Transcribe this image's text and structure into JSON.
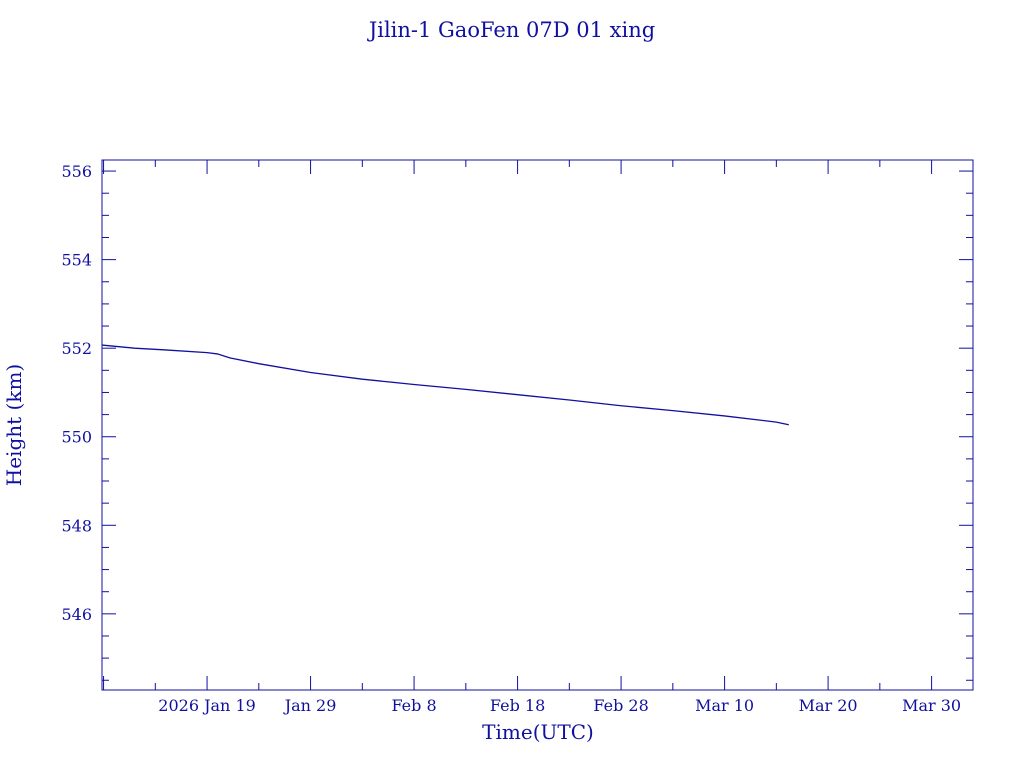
{
  "chart_data": {
    "type": "line",
    "title": "Jilin-1 GaoFen 07D 01 xing",
    "xlabel": "Time(UTC)",
    "ylabel": "Height (km)",
    "x_unit": "days since 2026 Jan 19",
    "xlim": [
      -10.15,
      74.0
    ],
    "ylim": [
      544.28,
      556.25
    ],
    "x_ticks": [
      {
        "day": 0,
        "label": "2026 Jan 19"
      },
      {
        "day": 10,
        "label": "Jan 29"
      },
      {
        "day": 20,
        "label": "Feb  8"
      },
      {
        "day": 30,
        "label": "Feb 18"
      },
      {
        "day": 40,
        "label": "Feb 28"
      },
      {
        "day": 50,
        "label": "Mar 10"
      },
      {
        "day": 60,
        "label": "Mar 20"
      },
      {
        "day": 70,
        "label": "Mar 30"
      }
    ],
    "y_ticks": [
      546,
      548,
      550,
      552,
      554,
      556
    ],
    "color": "#1010a0",
    "series": [
      {
        "name": "Height",
        "x": [
          -10.15,
          -7,
          -4,
          0,
          1,
          2.2,
          5,
          10,
          15,
          20,
          25,
          30,
          35,
          40,
          45,
          50,
          55,
          56.2
        ],
        "y": [
          552.07,
          552.0,
          551.96,
          551.9,
          551.87,
          551.78,
          551.65,
          551.45,
          551.3,
          551.18,
          551.07,
          550.95,
          550.83,
          550.7,
          550.59,
          550.47,
          550.33,
          550.27
        ]
      }
    ]
  }
}
